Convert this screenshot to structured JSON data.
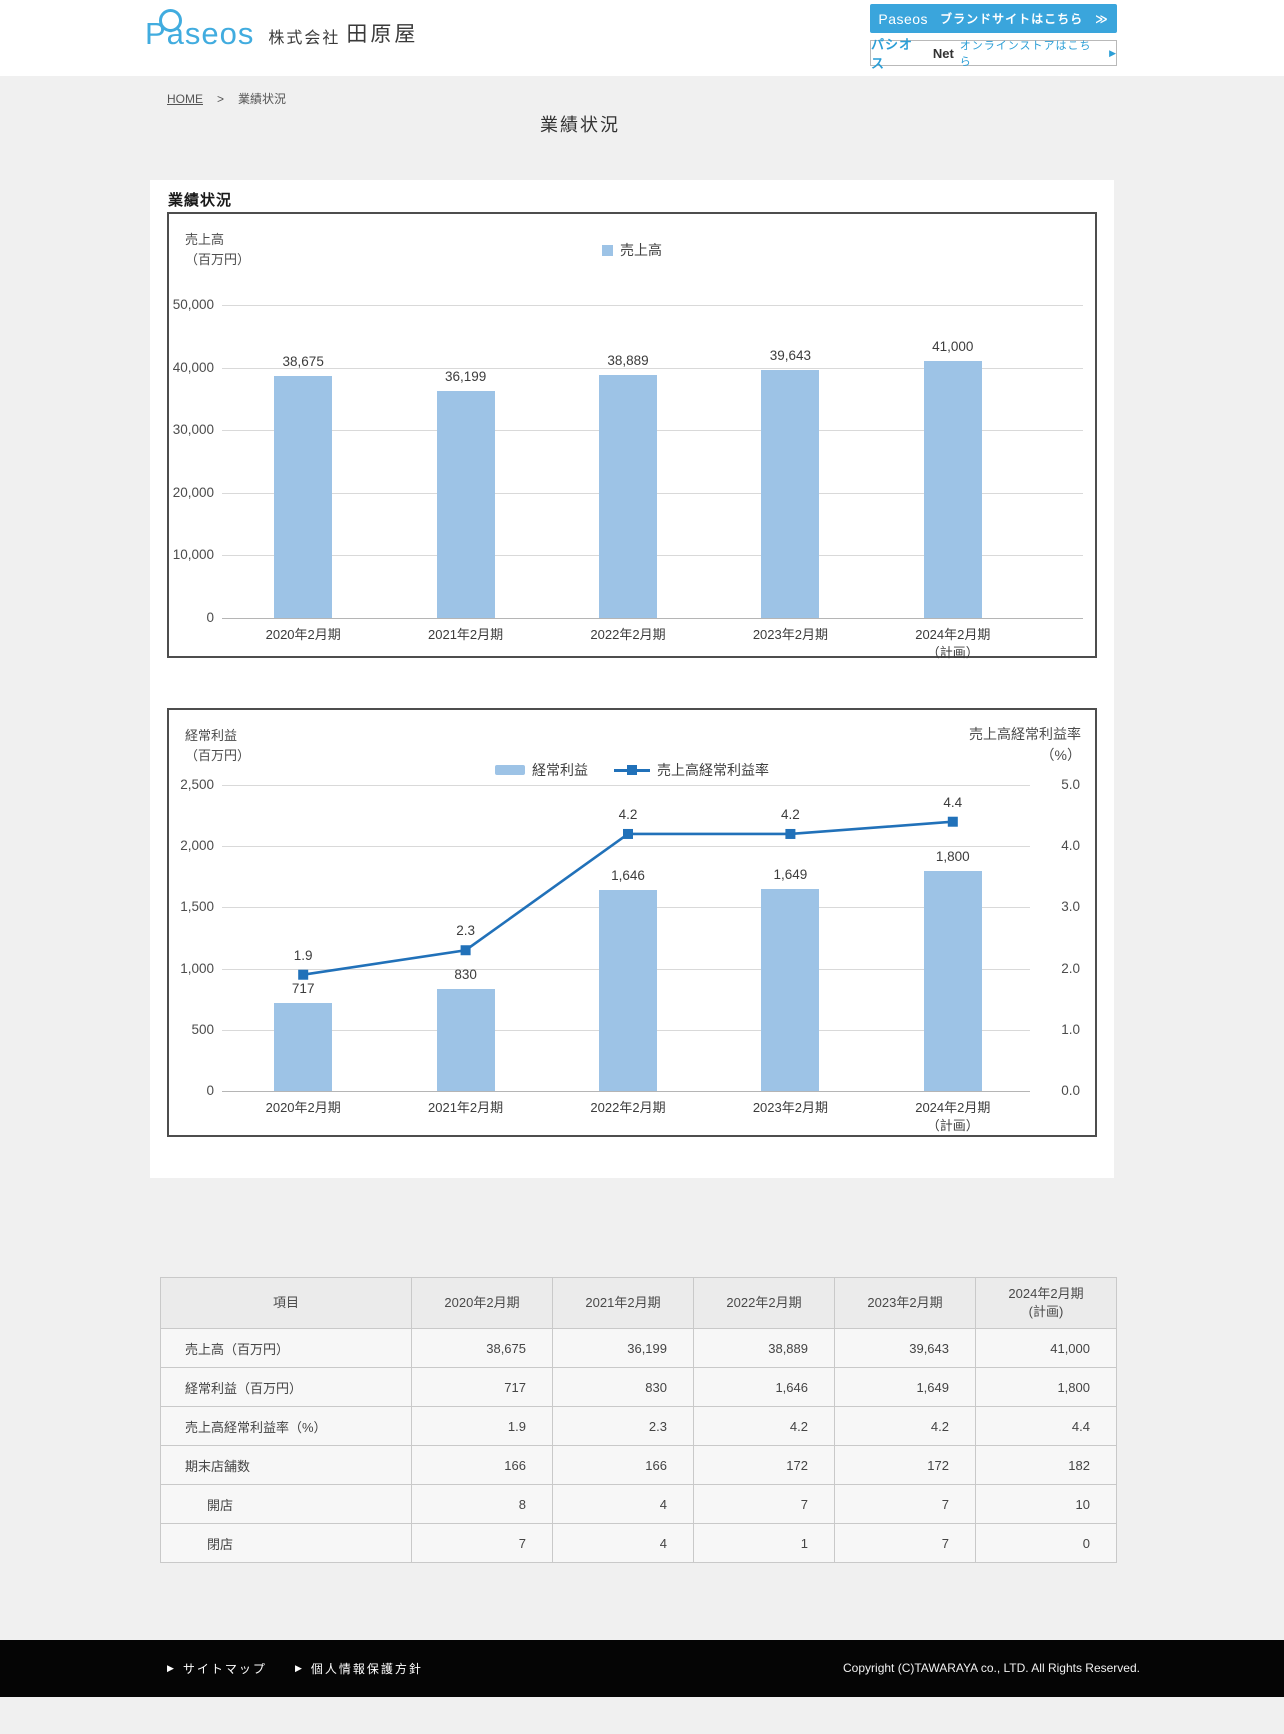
{
  "header": {
    "logo_text": "Paseos",
    "company_prefix": "株式会社",
    "company_name": "田原屋",
    "brand_button": {
      "logo_text": "Paseos",
      "label": "ブランドサイトはこちら",
      "arrow": "≫"
    },
    "store_button": {
      "brand": "パシオス",
      "brand_suffix": "Net",
      "label": "オンラインストアはこちら",
      "arrow": "▶"
    }
  },
  "breadcrumb": {
    "home": "HOME",
    "separator": ">",
    "current": "業績状況"
  },
  "page_title": "業績状況",
  "section_title": "業績状況",
  "colors": {
    "bar": "#9dc3e6",
    "line": "#2171b9",
    "brand_blue": "#3aa5dc",
    "link_blue": "#2b9ed6",
    "grid": "#d9d9d9"
  },
  "chart_data": [
    {
      "type": "bar",
      "title": "業績状況",
      "ylabel_lines": [
        "売上高",
        "（百万円）"
      ],
      "legend_label": "売上高",
      "categories": [
        "2020年2月期",
        "2021年2月期",
        "2022年2月期",
        "2023年2月期",
        "2024年2月期\n（計画）"
      ],
      "values": [
        38675,
        36199,
        38889,
        39643,
        41000
      ],
      "value_labels": [
        "38,675",
        "36,199",
        "38,889",
        "39,643",
        "41,000"
      ],
      "ylim": [
        0,
        50000
      ],
      "yticks": [
        "50,000",
        "40,000",
        "30,000",
        "20,000",
        "10,000",
        "0"
      ],
      "grid": true,
      "legend_position": "top-center"
    },
    {
      "type": "bar+line",
      "ylabel_lines": [
        "経常利益",
        "（百万円）"
      ],
      "rlabel_lines": [
        "売上高経常利益率",
        "（%）"
      ],
      "categories": [
        "2020年2月期",
        "2021年2月期",
        "2022年2月期",
        "2023年2月期",
        "2024年2月期\n（計画）"
      ],
      "series": [
        {
          "name": "経常利益",
          "type": "bar",
          "axis": "left",
          "values": [
            717,
            830,
            1646,
            1649,
            1800
          ],
          "labels": [
            "717",
            "830",
            "1,646",
            "1,649",
            "1,800"
          ]
        },
        {
          "name": "売上高経常利益率",
          "type": "line",
          "axis": "right",
          "values": [
            1.9,
            2.3,
            4.2,
            4.2,
            4.4
          ],
          "labels": [
            "1.9",
            "2.3",
            "4.2",
            "4.2",
            "4.4"
          ]
        }
      ],
      "ylim": [
        0,
        2500
      ],
      "yticks": [
        "2,500",
        "2,000",
        "1,500",
        "1,000",
        "500",
        "0"
      ],
      "ylim_right": [
        0,
        5
      ],
      "yticks_right": [
        "5.0",
        "4.0",
        "3.0",
        "2.0",
        "1.0",
        "0.0"
      ],
      "grid": true,
      "legend_position": "top-center"
    }
  ],
  "table": {
    "columns": [
      "項目",
      "2020年2月期",
      "2021年2月期",
      "2022年2月期",
      "2023年2月期",
      "2024年2月期\n(計画)"
    ],
    "rows": [
      {
        "label": "売上高（百万円）",
        "indent": false,
        "values": [
          "38,675",
          "36,199",
          "38,889",
          "39,643",
          "41,000"
        ]
      },
      {
        "label": "経常利益（百万円）",
        "indent": false,
        "values": [
          "717",
          "830",
          "1,646",
          "1,649",
          "1,800"
        ]
      },
      {
        "label": "売上高経常利益率（%）",
        "indent": false,
        "values": [
          "1.9",
          "2.3",
          "4.2",
          "4.2",
          "4.4"
        ]
      },
      {
        "label": "期末店舗数",
        "indent": false,
        "values": [
          "166",
          "166",
          "172",
          "172",
          "182"
        ]
      },
      {
        "label": "開店",
        "indent": true,
        "values": [
          "8",
          "4",
          "7",
          "7",
          "10"
        ]
      },
      {
        "label": "閉店",
        "indent": true,
        "values": [
          "7",
          "4",
          "1",
          "7",
          "0"
        ]
      }
    ]
  },
  "footer": {
    "links": [
      "サイトマップ",
      "個人情報保護方針"
    ],
    "copyright": "Copyright (C)TAWARAYA co., LTD. All Rights Reserved."
  }
}
